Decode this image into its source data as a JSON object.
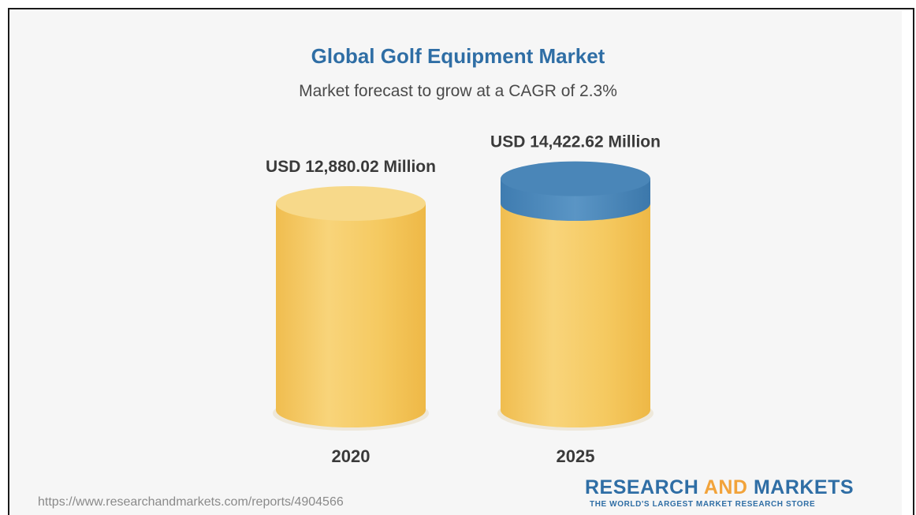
{
  "chart_data": {
    "type": "bar",
    "title": "Global Golf Equipment Market",
    "subtitle": "Market forecast to grow at a CAGR of 2.3%",
    "categories": [
      "2020",
      "2025"
    ],
    "values": [
      12880.02,
      14422.62
    ],
    "value_labels": [
      "USD 12,880.02 Million",
      "USD 14,422.62 Million"
    ],
    "unit": "USD Million",
    "grid": false,
    "legend": "none",
    "colors": {
      "bar": "#f5c960",
      "bar_light": "#f7d98a",
      "growth_cap": "#4a86b8",
      "title": "#2f6ea5"
    }
  },
  "source": {
    "url": "https://www.researchandmarkets.com/reports/4904566"
  },
  "brand": {
    "name_part1": "RESEARCH ",
    "name_part2": "AND",
    "name_part3": " MARKETS",
    "tagline": "THE WORLD'S LARGEST MARKET RESEARCH STORE"
  }
}
